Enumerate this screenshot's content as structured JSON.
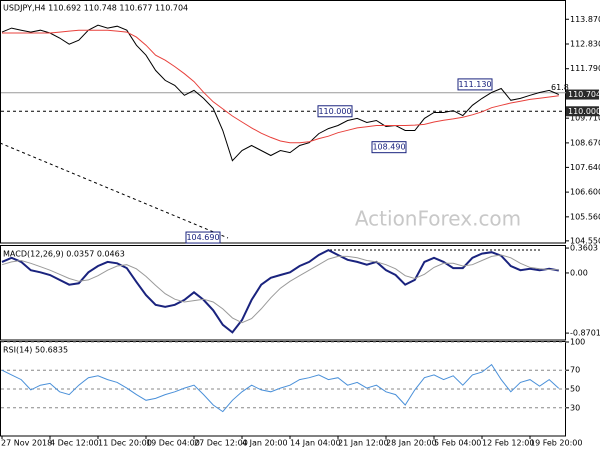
{
  "chart_data": [
    {
      "type": "line",
      "title": "USDJPY,H4 110.692 110.748 110.677 110.704",
      "watermark": "ActionForex.com",
      "ylim": [
        104.46,
        114.68
      ],
      "yticks": [
        {
          "value": 113.87,
          "label": "113.870"
        },
        {
          "value": 112.83,
          "label": "112.830"
        },
        {
          "value": 111.79,
          "label": "111.790"
        },
        {
          "value": 109.71,
          "label": "109.710"
        },
        {
          "value": 108.67,
          "label": "108.670"
        },
        {
          "value": 107.64,
          "label": "107.640"
        },
        {
          "value": 106.6,
          "label": "106.600"
        },
        {
          "value": 105.56,
          "label": "105.560"
        },
        {
          "value": 104.55,
          "label": "104.550"
        }
      ],
      "series": [
        {
          "color": "#000000",
          "values": [
            113.33,
            113.5,
            113.41,
            113.33,
            113.41,
            113.29,
            113.08,
            112.82,
            112.99,
            113.41,
            113.62,
            113.5,
            113.58,
            113.41,
            112.78,
            112.36,
            111.72,
            111.3,
            111.09,
            110.67,
            110.88,
            110.54,
            110.12,
            109.19,
            107.92,
            108.35,
            108.56,
            108.35,
            108.14,
            108.35,
            108.26,
            108.56,
            108.68,
            109.06,
            109.27,
            109.4,
            109.61,
            109.7,
            109.53,
            109.61,
            109.36,
            109.4,
            109.19,
            109.19,
            109.7,
            109.95,
            109.95,
            110.03,
            109.82,
            110.25,
            110.54,
            110.79,
            110.96,
            110.46,
            110.54,
            110.67,
            110.79,
            110.88,
            110.704
          ]
        },
        {
          "color": "#e8413c",
          "values": [
            113.29,
            113.29,
            113.29,
            113.29,
            113.29,
            113.29,
            113.33,
            113.37,
            113.41,
            113.41,
            113.41,
            113.41,
            113.37,
            113.33,
            113.12,
            112.78,
            112.36,
            112.15,
            111.88,
            111.58,
            111.25,
            110.8,
            110.4,
            110.1,
            109.8,
            109.55,
            109.3,
            109.08,
            108.9,
            108.75,
            108.68,
            108.68,
            108.72,
            108.85,
            108.95,
            109.1,
            109.2,
            109.3,
            109.35,
            109.4,
            109.4,
            109.4,
            109.4,
            109.42,
            109.45,
            109.55,
            109.62,
            109.68,
            109.75,
            109.85,
            109.98,
            110.15,
            110.25,
            110.35,
            110.42,
            110.5,
            110.55,
            110.6,
            110.65
          ]
        }
      ],
      "levels": [
        {
          "value": 110,
          "label": "110.000"
        }
      ],
      "fib": {
        "value": 110.78,
        "label": "61.8"
      },
      "last_price": {
        "value": 110.704,
        "label": "110.704"
      },
      "annotations": [
        {
          "value": 111.13,
          "label": "111.130"
        },
        {
          "value": 110,
          "label": "110.000"
        },
        {
          "value": 108.49,
          "label": "108.490"
        },
        {
          "value": 104.69,
          "label": "104.690"
        }
      ]
    },
    {
      "type": "line",
      "title": "MACD(12,26,9) 0.0357 0.0463",
      "ylim": [
        -0.97,
        0.39
      ],
      "yticks": [
        0.3603,
        {
          "value": 0,
          "label": "0.00"
        },
        -0.8701
      ],
      "series": [
        {
          "color": "#1a237e",
          "values": [
            0.16,
            0.22,
            0.16,
            0.04,
            0.01,
            -0.03,
            -0.1,
            -0.17,
            -0.15,
            0.01,
            0.1,
            0.16,
            0.14,
            0.07,
            -0.13,
            -0.32,
            -0.46,
            -0.49,
            -0.46,
            -0.39,
            -0.28,
            -0.39,
            -0.54,
            -0.75,
            -0.86,
            -0.68,
            -0.39,
            -0.17,
            -0.07,
            -0.03,
            0.01,
            0.1,
            0.16,
            0.26,
            0.33,
            0.26,
            0.19,
            0.16,
            0.12,
            0.16,
            0.04,
            -0.03,
            -0.17,
            -0.1,
            0.16,
            0.22,
            0.16,
            0.07,
            0.07,
            0.22,
            0.28,
            0.3,
            0.25,
            0.1,
            0.04,
            0.06,
            0.04,
            0.06,
            0.0357
          ]
        },
        {
          "color": "#9a9a9a",
          "values": [
            0.12,
            0.16,
            0.18,
            0.14,
            0.09,
            0.04,
            -0.02,
            -0.08,
            -0.12,
            -0.1,
            -0.04,
            0.04,
            0.1,
            0.12,
            0.06,
            -0.05,
            -0.18,
            -0.3,
            -0.38,
            -0.42,
            -0.4,
            -0.38,
            -0.42,
            -0.52,
            -0.65,
            -0.72,
            -0.66,
            -0.52,
            -0.36,
            -0.22,
            -0.12,
            -0.04,
            0.04,
            0.12,
            0.2,
            0.24,
            0.24,
            0.22,
            0.18,
            0.16,
            0.12,
            0.06,
            -0.04,
            -0.08,
            -0.02,
            0.08,
            0.14,
            0.14,
            0.1,
            0.12,
            0.18,
            0.24,
            0.26,
            0.22,
            0.14,
            0.08,
            0.06,
            0.05,
            0.0463
          ]
        }
      ]
    },
    {
      "type": "line",
      "title": "RSI(14) 50.6835",
      "grid": true,
      "ylim": [
        0,
        100
      ],
      "yticks": [
        100,
        70,
        50,
        30
      ],
      "categories": [
        "27 Nov 2018",
        null,
        null,
        null,
        null,
        "4 Dec 12:00",
        null,
        null,
        null,
        null,
        "11 Dec 20:00",
        null,
        null,
        null,
        null,
        "19 Dec 04:00",
        null,
        null,
        null,
        null,
        "27 Dec 12:00",
        null,
        null,
        null,
        null,
        "4 Jan 20:00",
        null,
        null,
        null,
        null,
        "14 Jan 04:00",
        null,
        null,
        null,
        null,
        "21 Jan 12:00",
        null,
        null,
        null,
        null,
        "28 Jan 20:00",
        null,
        null,
        null,
        null,
        "5 Feb 04:00",
        null,
        null,
        null,
        null,
        "12 Feb 12:00",
        null,
        null,
        null,
        null,
        "19 Feb 20:00",
        null,
        null,
        null
      ],
      "series": [
        {
          "color": "#4a90d9",
          "values": [
            70,
            65,
            60,
            49,
            54,
            56,
            47,
            44,
            54,
            62,
            64,
            60,
            57,
            51,
            44,
            38,
            40,
            44,
            47,
            51,
            54,
            44,
            33,
            26,
            38,
            47,
            54,
            49,
            47,
            51,
            54,
            60,
            62,
            65,
            60,
            62,
            54,
            57,
            51,
            54,
            47,
            44,
            33,
            49,
            62,
            65,
            60,
            64,
            54,
            65,
            68,
            76,
            60,
            47,
            57,
            60,
            53,
            60,
            50.6835
          ]
        }
      ]
    }
  ]
}
